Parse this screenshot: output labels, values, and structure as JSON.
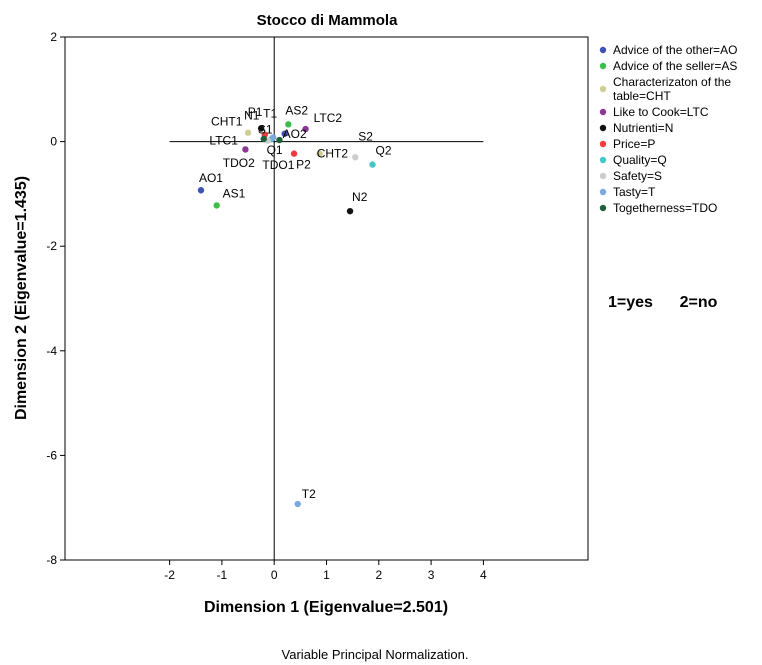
{
  "chart_data": {
    "type": "scatter",
    "title": "Stocco di Mammola",
    "xlabel": "Dimension 1 (Eigenvalue=2.501)",
    "ylabel": "Dimension 2 (Eigenvalue=1.435)",
    "xlim": [
      -4,
      6
    ],
    "ylim": [
      -8,
      2
    ],
    "xticks": [
      -2,
      -1,
      0,
      1,
      2,
      3,
      4
    ],
    "yticks": [
      2,
      0,
      -2,
      -4,
      -6,
      -8
    ],
    "reference_lines": {
      "vertical_x": 0,
      "horizontal_y": 0,
      "horizontal_from": -2,
      "horizontal_to": 4
    },
    "series": [
      {
        "name": "Advice of the other=AO",
        "color": "#3f51b5",
        "points": [
          {
            "label": "AO1",
            "x": -1.4,
            "y": -0.93
          },
          {
            "label": "AO2",
            "x": 0.2,
            "y": 0.15
          }
        ]
      },
      {
        "name": "Advice of the seller=AS",
        "color": "#3cbf4a",
        "points": [
          {
            "label": "AS1",
            "x": -1.1,
            "y": -1.22
          },
          {
            "label": "AS2",
            "x": 0.27,
            "y": 0.33
          }
        ]
      },
      {
        "name": "Characterizaton of the table=CHT",
        "color": "#cfcf95",
        "points": [
          {
            "label": "CHT1",
            "x": -0.5,
            "y": 0.17
          },
          {
            "label": "CHT2",
            "x": 0.87,
            "y": -0.23
          }
        ]
      },
      {
        "name": "Like to Cook=LTC",
        "color": "#8e3596",
        "points": [
          {
            "label": "LTC1",
            "x": -0.55,
            "y": -0.15
          },
          {
            "label": "LTC2",
            "x": 0.6,
            "y": 0.24
          }
        ]
      },
      {
        "name": "Nutrienti=N",
        "color": "#111111",
        "points": [
          {
            "label": "N1",
            "x": -0.25,
            "y": 0.25
          },
          {
            "label": "N2",
            "x": 1.45,
            "y": -1.33
          }
        ]
      },
      {
        "name": "Price=P",
        "color": "#ef3b3b",
        "points": [
          {
            "label": "P1",
            "x": -0.18,
            "y": 0.13
          },
          {
            "label": "P2",
            "x": 0.38,
            "y": -0.23
          }
        ]
      },
      {
        "name": "Quality=Q",
        "color": "#45c7c7",
        "points": [
          {
            "label": "Q1",
            "x": -0.05,
            "y": 0.05
          },
          {
            "label": "Q2",
            "x": 1.88,
            "y": -0.44
          }
        ]
      },
      {
        "name": "Safety=S",
        "color": "#cccccc",
        "points": [
          {
            "label": "S1",
            "x": -0.12,
            "y": 0.02
          },
          {
            "label": "S2",
            "x": 1.55,
            "y": -0.3
          }
        ]
      },
      {
        "name": "Tasty=T",
        "color": "#7ea7e0",
        "points": [
          {
            "label": "T1",
            "x": -0.02,
            "y": 0.08
          },
          {
            "label": "T2",
            "x": 0.45,
            "y": -6.93
          }
        ]
      },
      {
        "name": "Togetherness=TDO",
        "color": "#1f5f3a",
        "points": [
          {
            "label": "TDO2",
            "x": -0.2,
            "y": 0.05
          },
          {
            "label": "TDO1",
            "x": 0.1,
            "y": 0.03
          }
        ]
      }
    ],
    "legend_position": "right",
    "annotation": "1=yes      2=no",
    "footnote": "Variable Principal Normalization."
  }
}
